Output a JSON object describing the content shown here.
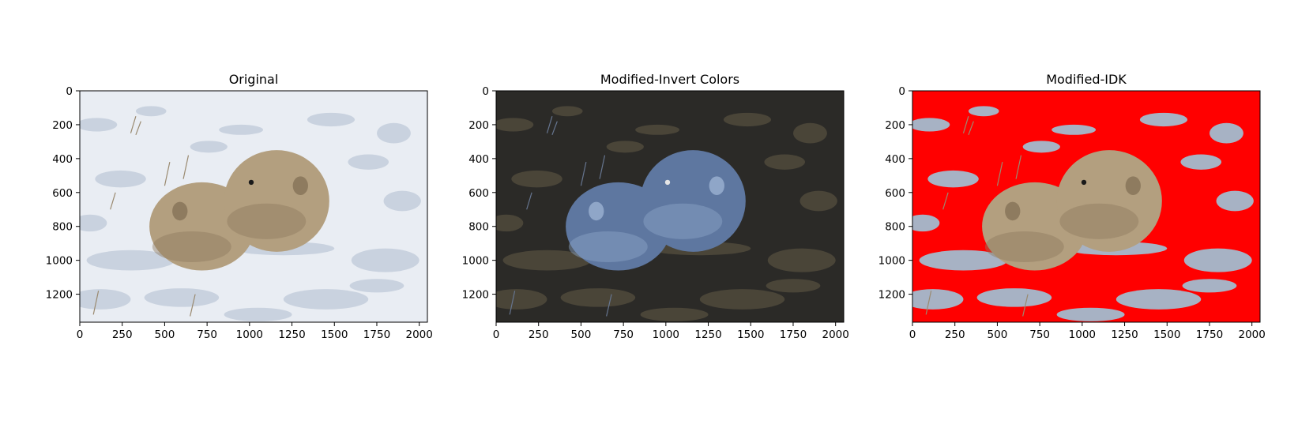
{
  "chart_data": [
    {
      "type": "image",
      "title": "Original",
      "xlim": [
        0,
        2048
      ],
      "ylim": [
        1365,
        0
      ],
      "xticks": [
        0,
        250,
        500,
        750,
        1000,
        1250,
        1500,
        1750,
        2000
      ],
      "yticks": [
        0,
        200,
        400,
        600,
        800,
        1000,
        1200
      ],
      "grid": false,
      "palette": {
        "background": "#e9edf3",
        "snow_shadow": "#c9d2df",
        "animal": "#b39f7f",
        "animal_dark": "#8e7b5f",
        "grass": "#9a8a70",
        "eye": "#1a1a1a"
      }
    },
    {
      "type": "image",
      "title": "Modified-Invert Colors",
      "xlim": [
        0,
        2048
      ],
      "ylim": [
        1365,
        0
      ],
      "xticks": [
        0,
        250,
        500,
        750,
        1000,
        1250,
        1500,
        1750,
        2000
      ],
      "yticks": [
        0,
        200,
        400,
        600,
        800,
        1000,
        1200
      ],
      "grid": false,
      "palette": {
        "background": "#2b2a27",
        "snow_shadow": "#4a4538",
        "animal": "#5e77a0",
        "animal_dark": "#8fa6c8",
        "grass": "#66758f",
        "eye": "#e5e5e5"
      }
    },
    {
      "type": "image",
      "title": "Modified-IDK",
      "xlim": [
        0,
        2048
      ],
      "ylim": [
        1365,
        0
      ],
      "xticks": [
        0,
        250,
        500,
        750,
        1000,
        1250,
        1500,
        1750,
        2000
      ],
      "yticks": [
        0,
        200,
        400,
        600,
        800,
        1000,
        1200
      ],
      "grid": false,
      "palette": {
        "background": "#ff0000",
        "snow_shadow": "#a7b2c4",
        "animal": "#b39f7f",
        "animal_dark": "#8e7b5f",
        "grass": "#9a8a70",
        "eye": "#1a1a1a"
      }
    }
  ]
}
